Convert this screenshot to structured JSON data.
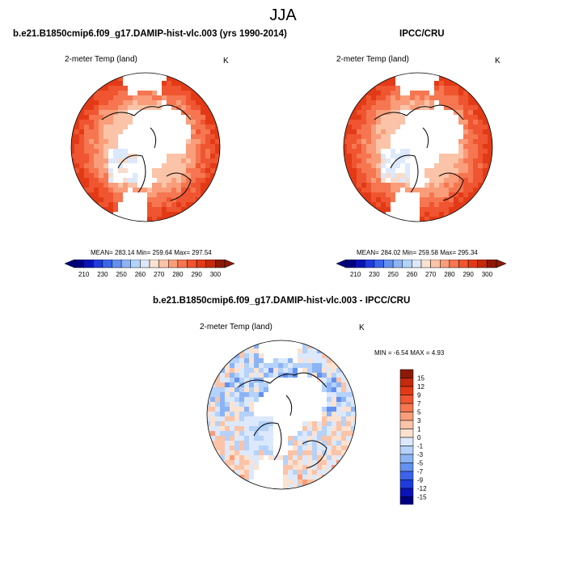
{
  "season": "JJA",
  "colors": {
    "cold": [
      "#00007f",
      "#0a14b4",
      "#1e3cdc",
      "#3c64eb",
      "#6490f0",
      "#8cb4f5",
      "#b4d2fa",
      "#dce8fc"
    ],
    "neutral": "#ffffff",
    "warm": [
      "#fde2d0",
      "#fbc3a7",
      "#f99d7a",
      "#f57650",
      "#ef5530",
      "#e23a17",
      "#c42a0c",
      "#8c1a06"
    ],
    "land_pale": "#f8dccb",
    "coast": "#000000"
  },
  "chart_data": [
    {
      "type": "heatmap",
      "panel": "model",
      "title": "b.e21.B1850cmip6.f09_g17.DAMIP-hist-vlc.003 (yrs 1990-2014)",
      "variable_label": "2-meter Temp (land)",
      "units": "K",
      "stats": {
        "mean_label": "MEAN=",
        "mean": "283.14",
        "min_label": "Min=",
        "min": "259.64",
        "max_label": "Max=",
        "max": "297.54"
      },
      "colorbar": {
        "orientation": "horizontal",
        "ticks": [
          "210",
          "230",
          "250",
          "260",
          "270",
          "280",
          "290",
          "300"
        ]
      }
    },
    {
      "type": "heatmap",
      "panel": "obs",
      "title": "IPCC/CRU",
      "variable_label": "2-meter Temp (land)",
      "units": "K",
      "stats": {
        "mean_label": "MEAN=",
        "mean": "284.02",
        "min_label": "Min=",
        "min": "259.58",
        "max_label": "Max=",
        "max": "295.34"
      },
      "colorbar": {
        "orientation": "horizontal",
        "ticks": [
          "210",
          "230",
          "250",
          "260",
          "270",
          "280",
          "290",
          "300"
        ]
      }
    },
    {
      "type": "heatmap",
      "panel": "difference",
      "title": "b.e21.B1850cmip6.f09_g17.DAMIP-hist-vlc.003 - IPCC/CRU",
      "variable_label": "2-meter Temp (land)",
      "units": "K",
      "stats": {
        "min_label": "MIN =",
        "min": "-6.54",
        "max_label": "MAX =",
        "max": "4.93"
      },
      "colorbar": {
        "orientation": "vertical",
        "ticks": [
          "15",
          "12",
          "9",
          "7",
          "5",
          "3",
          "1",
          "0",
          "-1",
          "-3",
          "-5",
          "-7",
          "-9",
          "-12",
          "-15"
        ]
      }
    }
  ]
}
